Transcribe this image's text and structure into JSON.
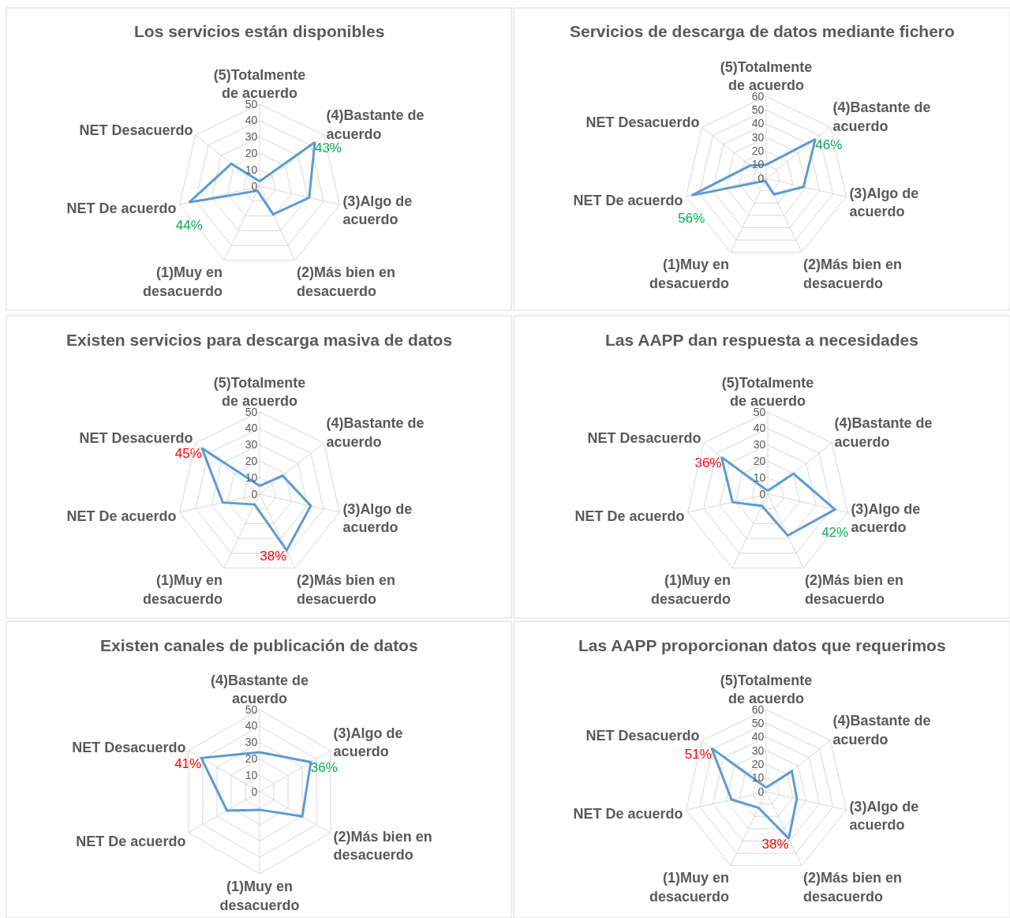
{
  "chart_data": [
    {
      "type": "radar",
      "title": "Los servicios están disponibles",
      "categories": [
        "(5)Totalmente\nde acuerdo",
        "(4)Bastante de\nacuerdo",
        "(3)Algo de\nacuerdo",
        "(2)Más bien en\ndesacuerdo",
        "(1)Muy en\ndesacuerdo",
        "NET De acuerdo",
        "NET Desacuerdo"
      ],
      "ylim": [
        0,
        50
      ],
      "yticks": [
        0,
        10,
        20,
        30,
        40,
        50
      ],
      "grid": true,
      "series": [
        {
          "color": "#5b9bd5",
          "values": [
            3,
            43,
            31,
            19,
            3,
            44,
            22
          ],
          "value_labels": [
            null,
            "43%",
            null,
            null,
            null,
            "44%",
            null
          ],
          "colors": [
            null,
            "#00b050",
            null,
            null,
            null,
            "#00b050",
            null
          ]
        }
      ]
    },
    {
      "type": "radar",
      "title": "Servicios de descarga de datos mediante fichero",
      "categories": [
        "(5)Totalmente\nde acuerdo",
        "(4)Bastante de\nacuerdo",
        "(3)Algo de\nacuerdo",
        "(2)Más bien en\ndesacuerdo",
        "(1)Muy en\ndesacuerdo",
        "NET De acuerdo",
        "NET Desacuerdo"
      ],
      "ylim": [
        0,
        60
      ],
      "yticks": [
        0,
        10,
        20,
        30,
        40,
        50,
        60
      ],
      "grid": true,
      "series": [
        {
          "color": "#5b9bd5",
          "values": [
            10,
            46,
            28,
            13,
            2,
            56,
            15
          ],
          "value_labels": [
            null,
            "46%",
            null,
            null,
            null,
            "56%",
            null
          ],
          "colors": [
            null,
            "#00b050",
            null,
            null,
            null,
            "#00b050",
            null
          ]
        }
      ]
    },
    {
      "type": "radar",
      "title": "Existen servicios para descarga masiva de datos",
      "categories": [
        "(5)Totalmente\nde acuerdo",
        "(4)Bastante de\nacuerdo",
        "(3)Algo de\nacuerdo",
        "(2)Más bien en\ndesacuerdo",
        "(1)Muy en\ndesacuerdo",
        "NET De acuerdo",
        "NET Desacuerdo"
      ],
      "ylim": [
        0,
        50
      ],
      "yticks": [
        0,
        10,
        20,
        30,
        40,
        50
      ],
      "grid": true,
      "series": [
        {
          "color": "#5b9bd5",
          "values": [
            5,
            18,
            32,
            38,
            7,
            23,
            45
          ],
          "value_labels": [
            null,
            null,
            null,
            "38%",
            null,
            null,
            "45%"
          ],
          "colors": [
            null,
            null,
            null,
            "#ff0000",
            null,
            null,
            "#ff0000"
          ]
        }
      ]
    },
    {
      "type": "radar",
      "title": "Las AAPP dan respuesta a necesidades",
      "categories": [
        "(5)Totalmente\nde acuerdo",
        "(4)Bastante de\nacuerdo",
        "(3)Algo de\nacuerdo",
        "(2)Más bien en\ndesacuerdo",
        "(1)Muy en\ndesacuerdo",
        "NET De acuerdo",
        "NET Desacuerdo"
      ],
      "ylim": [
        0,
        50
      ],
      "yticks": [
        0,
        10,
        20,
        30,
        40,
        50
      ],
      "grid": true,
      "series": [
        {
          "color": "#5b9bd5",
          "values": [
            2,
            20,
            42,
            28,
            8,
            22,
            36
          ],
          "value_labels": [
            null,
            null,
            "42%",
            null,
            null,
            null,
            "36%"
          ],
          "colors": [
            null,
            null,
            "#00b050",
            null,
            null,
            null,
            "#ff0000"
          ]
        }
      ]
    },
    {
      "type": "radar",
      "title": "Existen canales de publicación de datos",
      "categories": [
        "(4)Bastante de\nacuerdo",
        "(3)Algo de\nacuerdo",
        "(2)Más bien en\ndesacuerdo",
        "(1)Muy en\ndesacuerdo",
        "NET De acuerdo",
        "NET Desacuerdo"
      ],
      "ylim": [
        0,
        50
      ],
      "yticks": [
        0,
        10,
        20,
        30,
        40,
        50
      ],
      "grid": true,
      "series": [
        {
          "color": "#5b9bd5",
          "values": [
            24,
            36,
            30,
            11,
            23,
            41
          ],
          "value_labels": [
            null,
            "36%",
            null,
            null,
            null,
            "41%"
          ],
          "colors": [
            null,
            "#00b050",
            null,
            null,
            null,
            "#ff0000"
          ]
        }
      ]
    },
    {
      "type": "radar",
      "title": "Las AAPP proporcionan datos que requerimos",
      "categories": [
        "(5)Totalmente\nde acuerdo",
        "(4)Bastante de\nacuerdo",
        "(3)Algo de\nacuerdo",
        "(2)Más bien en\ndesacuerdo",
        "(1)Muy en\ndesacuerdo",
        "NET De acuerdo",
        "NET Desacuerdo"
      ],
      "ylim": [
        0,
        60
      ],
      "yticks": [
        0,
        10,
        20,
        30,
        40,
        50,
        60
      ],
      "grid": true,
      "series": [
        {
          "color": "#5b9bd5",
          "values": [
            3,
            24,
            23,
            38,
            13,
            26,
            51
          ],
          "value_labels": [
            null,
            null,
            null,
            "38%",
            null,
            null,
            "51%"
          ],
          "colors": [
            null,
            null,
            null,
            "#ff0000",
            null,
            null,
            "#ff0000"
          ]
        }
      ]
    }
  ]
}
